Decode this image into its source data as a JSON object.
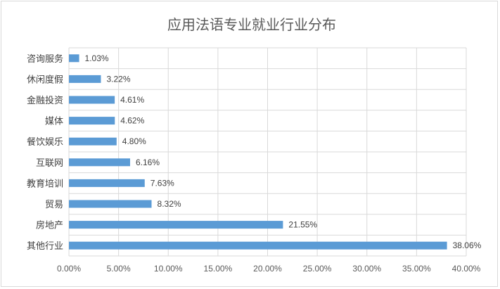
{
  "chart_data": {
    "type": "bar",
    "orientation": "horizontal",
    "title": "应用法语专业就业行业分布",
    "categories": [
      "咨询服务",
      "休闲度假",
      "金融投资",
      "媒体",
      "餐饮娱乐",
      "互联网",
      "教育培训",
      "贸易",
      "房地产",
      "其他行业"
    ],
    "values": [
      1.03,
      3.22,
      4.61,
      4.62,
      4.8,
      6.16,
      7.63,
      8.32,
      21.55,
      38.06
    ],
    "data_labels": [
      "1.03%",
      "3.22%",
      "4.61%",
      "4.62%",
      "4.80%",
      "6.16%",
      "7.63%",
      "8.32%",
      "21.55%",
      "38.06%"
    ],
    "xlim": [
      0,
      40
    ],
    "x_ticks": [
      0,
      5,
      10,
      15,
      20,
      25,
      30,
      35,
      40
    ],
    "x_tick_labels": [
      "0.00%",
      "5.00%",
      "10.00%",
      "15.00%",
      "20.00%",
      "25.00%",
      "30.00%",
      "35.00%",
      "40.00%"
    ],
    "xlabel": "",
    "ylabel": "",
    "grid": true,
    "legend": "none",
    "bar_color": "#5b9bd5",
    "grid_color": "#d9d9d9"
  }
}
